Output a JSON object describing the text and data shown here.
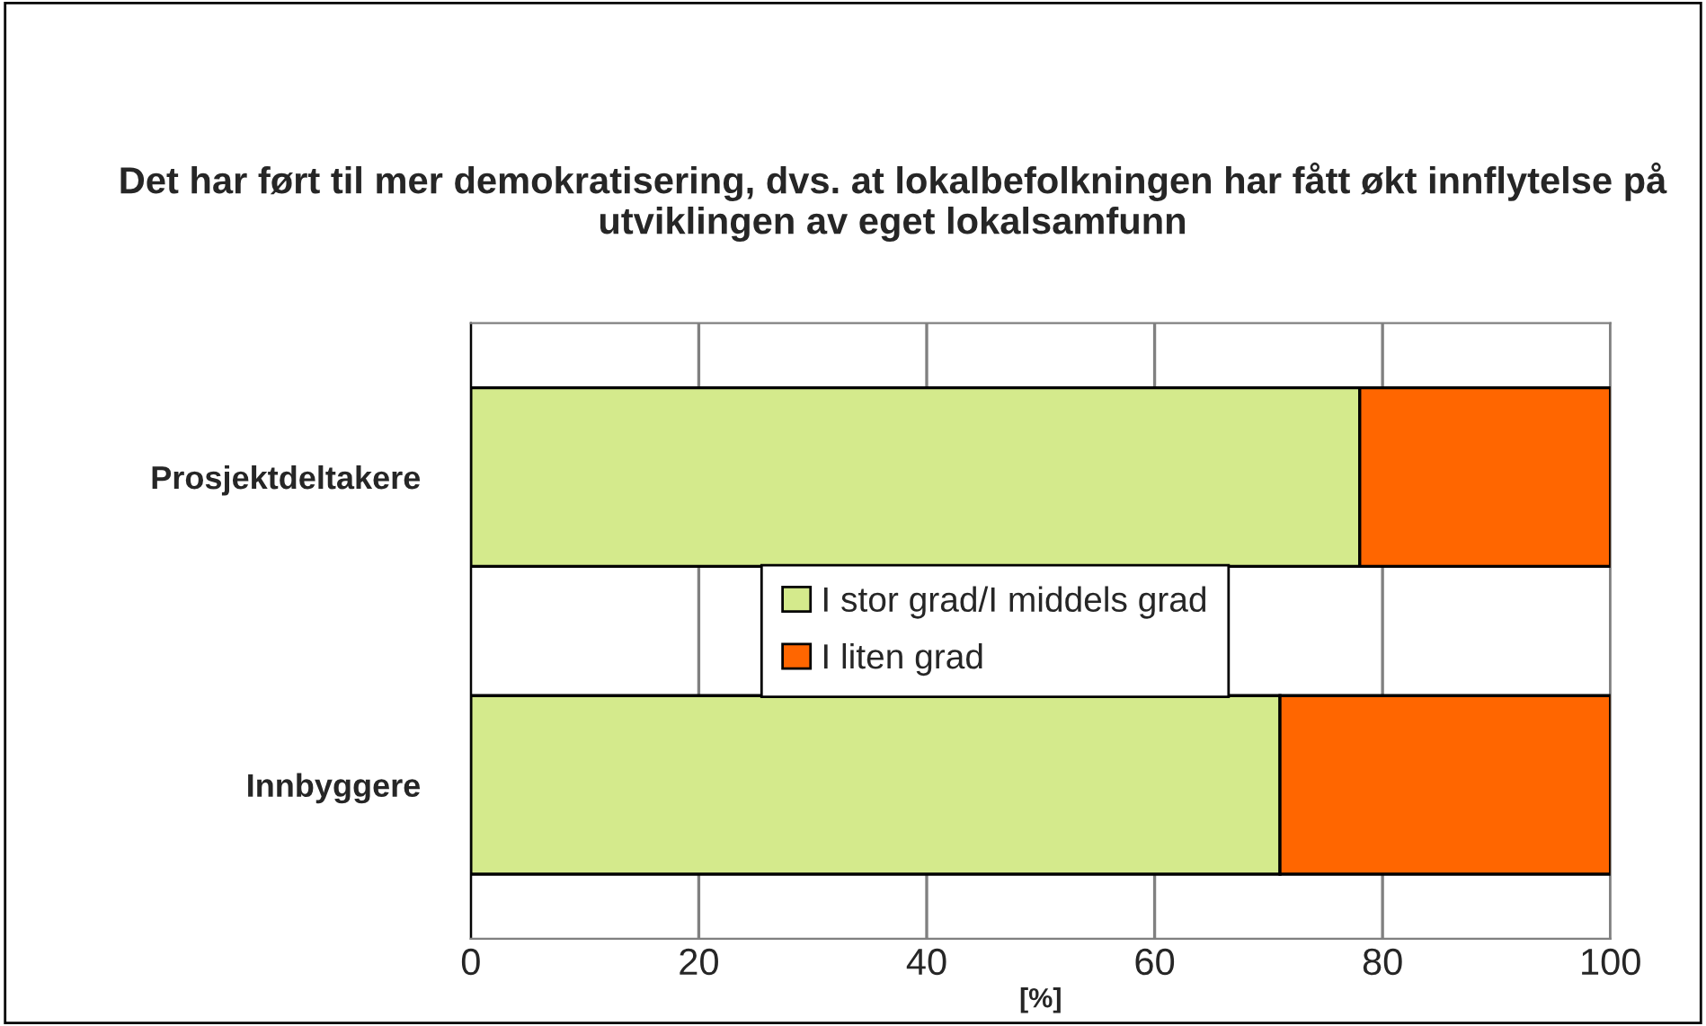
{
  "chart_data": {
    "type": "bar",
    "orientation": "horizontal",
    "stacked": true,
    "title": "Det har ført til mer demokratisering, dvs. at lokalbefolkningen har fått økt innflytelse på utviklingen av eget lokalsamfunn",
    "xlabel": "[%]",
    "categories": [
      "Prosjektdeltakere",
      "Innbyggere"
    ],
    "series": [
      {
        "name": "I stor grad/I middels grad",
        "color": "#d4ea8c",
        "values": [
          78,
          71
        ]
      },
      {
        "name": "I liten grad",
        "color": "#ff6600",
        "values": [
          22,
          29
        ]
      }
    ],
    "xlim": [
      0,
      100
    ],
    "xticks": [
      0,
      20,
      40,
      60,
      80,
      100
    ],
    "grid": "x",
    "legend": "center"
  }
}
